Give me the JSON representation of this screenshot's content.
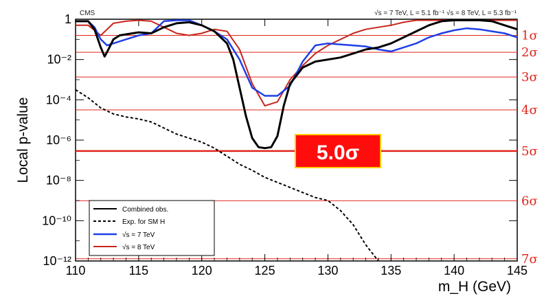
{
  "chart_data": {
    "type": "line",
    "experiment_tag": "CMS",
    "energy_note": "√s = 7 TeV, L = 5.1 fb⁻¹  √s = 8 TeV, L = 5.3 fb⁻¹",
    "xlabel": "m_H (GeV)",
    "ylabel": "Local p-value",
    "xlim": [
      110,
      145
    ],
    "ylim_log10": [
      -12,
      0
    ],
    "y_scale": "log",
    "x_ticks": [
      110,
      115,
      120,
      125,
      130,
      135,
      140,
      145
    ],
    "y_ticks": [
      {
        "exp": null,
        "text": "1"
      },
      {
        "exp": -2,
        "text": "10⁻²"
      },
      {
        "exp": -4,
        "text": "10⁻⁴"
      },
      {
        "exp": -6,
        "text": "10⁻⁶"
      },
      {
        "exp": -8,
        "text": "10⁻⁸"
      },
      {
        "exp": -10,
        "text": "10⁻¹⁰"
      },
      {
        "exp": -12,
        "text": "10⁻¹²"
      }
    ],
    "sigma_lines": [
      {
        "label": "1σ",
        "log10p": -0.8
      },
      {
        "label": "2σ",
        "log10p": -1.64
      },
      {
        "label": "3σ",
        "log10p": -2.87
      },
      {
        "label": "4σ",
        "log10p": -4.5
      },
      {
        "label": "5σ",
        "log10p": -6.54
      },
      {
        "label": "6σ",
        "log10p": -9.01
      },
      {
        "label": "7σ",
        "log10p": -11.89
      }
    ],
    "annotation": "5.0σ",
    "legend_position": "bottom-left",
    "series": [
      {
        "name": "Combined obs.",
        "color": "#000000",
        "style": "solid",
        "x": [
          110,
          111,
          111.5,
          112,
          112.3,
          112.6,
          113,
          113.5,
          114,
          115,
          116,
          117,
          118,
          119,
          120,
          121,
          122,
          122.5,
          123,
          123.5,
          124,
          124.5,
          125,
          125.5,
          126,
          126.5,
          127,
          128,
          129,
          130,
          131,
          132,
          133,
          134,
          135,
          136,
          137,
          138,
          139,
          140,
          141,
          142,
          143,
          144,
          145
        ],
        "y": [
          -0.1,
          -0.1,
          -0.5,
          -1.4,
          -1.85,
          -1.5,
          -1.0,
          -0.8,
          -0.75,
          -0.65,
          -0.7,
          -0.4,
          -0.2,
          -0.15,
          -0.3,
          -0.6,
          -1.2,
          -2.0,
          -3.4,
          -4.8,
          -5.9,
          -6.35,
          -6.4,
          -6.35,
          -5.8,
          -4.3,
          -3.2,
          -2.4,
          -2.1,
          -2.0,
          -1.9,
          -1.7,
          -1.5,
          -1.4,
          -1.2,
          -0.9,
          -0.6,
          -0.3,
          -0.1,
          -0.05,
          -0.05,
          -0.05,
          -0.1,
          -0.3,
          -0.5
        ]
      },
      {
        "name": "Exp. for SM H",
        "color": "#000000",
        "style": "dashed",
        "x": [
          110,
          111,
          112,
          113,
          114,
          115,
          116,
          117,
          118,
          119,
          120,
          121,
          122,
          123,
          124,
          125,
          126,
          127,
          128,
          129,
          130,
          131,
          132,
          133,
          134
        ],
        "y": [
          -3.5,
          -3.9,
          -4.4,
          -4.7,
          -4.85,
          -4.95,
          -5.1,
          -5.4,
          -5.7,
          -5.9,
          -6.1,
          -6.4,
          -6.8,
          -7.2,
          -7.5,
          -7.85,
          -8.1,
          -8.35,
          -8.6,
          -8.85,
          -9.0,
          -9.5,
          -10.2,
          -11.2,
          -12.0
        ]
      },
      {
        "name": "√s = 7 TeV",
        "color": "#1d3fe6",
        "style": "solid",
        "x": [
          110,
          111,
          111.5,
          112,
          112.5,
          113,
          114,
          115,
          116,
          117,
          118,
          119,
          120,
          121,
          122,
          123,
          124,
          125,
          126,
          127,
          128,
          129,
          130,
          131,
          132,
          133,
          134,
          135,
          136,
          137,
          138,
          139,
          140,
          141,
          142,
          143,
          144,
          145
        ],
        "y": [
          -0.1,
          -0.1,
          -0.4,
          -1.0,
          -1.3,
          -1.2,
          -1.0,
          -0.8,
          -0.7,
          -0.1,
          -0.05,
          -0.05,
          -0.3,
          -0.6,
          -1.0,
          -2.0,
          -3.4,
          -3.8,
          -3.8,
          -3.3,
          -2.1,
          -1.3,
          -1.2,
          -1.25,
          -1.3,
          -1.35,
          -1.5,
          -1.6,
          -1.4,
          -1.2,
          -0.9,
          -0.7,
          -0.55,
          -0.45,
          -0.5,
          -0.6,
          -0.7,
          -0.9
        ]
      },
      {
        "name": "√s = 8 TeV",
        "color": "#c8251c",
        "style": "solid",
        "x": [
          110,
          111,
          112,
          113,
          114,
          115,
          116,
          117,
          118,
          119,
          120,
          121,
          122,
          123,
          124,
          125,
          126,
          127,
          128,
          129,
          130,
          131,
          132,
          133,
          134,
          135,
          136,
          137,
          138,
          139,
          140,
          141,
          142,
          143,
          144,
          145
        ],
        "y": [
          -0.3,
          -0.3,
          -0.8,
          -0.2,
          -0.1,
          -0.05,
          -0.1,
          -0.4,
          -0.7,
          -0.8,
          -0.7,
          -0.5,
          -0.6,
          -1.5,
          -3.2,
          -4.3,
          -4.1,
          -3.0,
          -2.3,
          -1.7,
          -1.3,
          -1.0,
          -0.7,
          -0.5,
          -0.4,
          -0.3,
          -0.15,
          -0.05,
          -0.05,
          -0.05,
          -0.05,
          -0.05,
          -0.05,
          -0.05,
          -0.05,
          -0.05
        ]
      }
    ]
  }
}
